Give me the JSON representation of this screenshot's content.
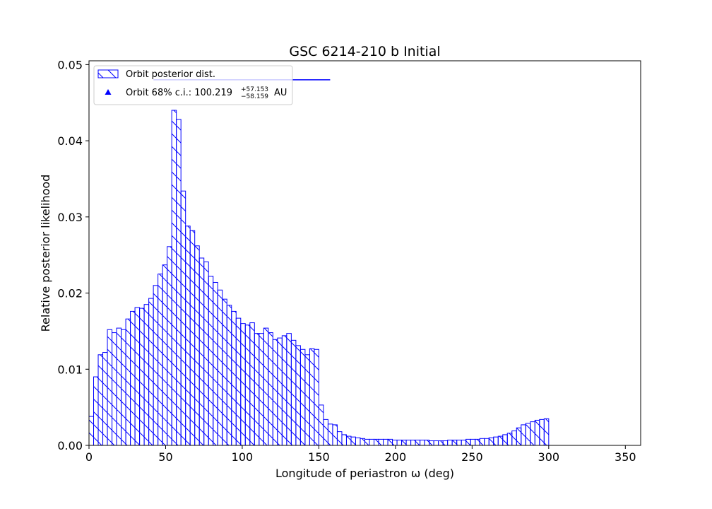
{
  "chart_data": {
    "type": "bar",
    "title": "GSC 6214-210 b Initial",
    "xlabel": "Longitude of periastron ω (deg)",
    "ylabel": "Relative posterior likelihood",
    "xlim": [
      0,
      360
    ],
    "ylim": [
      0,
      0.0505
    ],
    "x_ticks": [
      0,
      50,
      100,
      150,
      200,
      250,
      300,
      350
    ],
    "y_ticks": [
      0.0,
      0.01,
      0.02,
      0.03,
      0.04,
      0.05
    ],
    "y_tick_labels": [
      "0.00",
      "0.01",
      "0.02",
      "0.03",
      "0.04",
      "0.05"
    ],
    "bin_width": 3,
    "bin_start": 0,
    "values": [
      0.0038,
      0.009,
      0.0119,
      0.0122,
      0.0152,
      0.0148,
      0.0154,
      0.0152,
      0.0166,
      0.0176,
      0.0181,
      0.018,
      0.0185,
      0.0193,
      0.021,
      0.0225,
      0.0237,
      0.0261,
      0.044,
      0.0428,
      0.0334,
      0.0288,
      0.0282,
      0.0262,
      0.0246,
      0.0241,
      0.0222,
      0.0214,
      0.0204,
      0.0192,
      0.0184,
      0.0176,
      0.0167,
      0.016,
      0.0158,
      0.0161,
      0.0147,
      0.0147,
      0.0154,
      0.0148,
      0.0139,
      0.0141,
      0.0144,
      0.0147,
      0.0138,
      0.0131,
      0.0126,
      0.0119,
      0.0127,
      0.0126,
      0.0053,
      0.0034,
      0.0028,
      0.0027,
      0.0018,
      0.0014,
      0.0012,
      0.0011,
      0.001,
      0.0009,
      0.0008,
      0.0008,
      0.0008,
      0.0008,
      0.0008,
      0.0008,
      0.0007,
      0.0007,
      0.0007,
      0.0007,
      0.0007,
      0.0007,
      0.0007,
      0.0007,
      0.0006,
      0.0006,
      0.0006,
      0.0006,
      0.0007,
      0.0007,
      0.0007,
      0.0007,
      0.0008,
      0.0008,
      0.0008,
      0.0009,
      0.0009,
      0.001,
      0.0011,
      0.0012,
      0.0014,
      0.0016,
      0.0019,
      0.0023,
      0.0027,
      0.0029,
      0.0031,
      0.0033,
      0.0034,
      0.0035
    ],
    "legend": {
      "position": "upper-left",
      "hist_label": "Orbit posterior dist.",
      "ci_label_prefix": "Orbit 68% c.i.: 100.219",
      "ci_sup": "+57.153",
      "ci_sub": "−58.159",
      "ci_unit": "AU"
    },
    "ci": {
      "center": 100.219,
      "plus": 57.153,
      "minus": 58.159,
      "y": 0.048
    },
    "colors": {
      "bar_edge": "#0000ff",
      "hatch": "#0000ff",
      "bar_fill": "#ffffff",
      "ci": "#0000ff"
    }
  }
}
